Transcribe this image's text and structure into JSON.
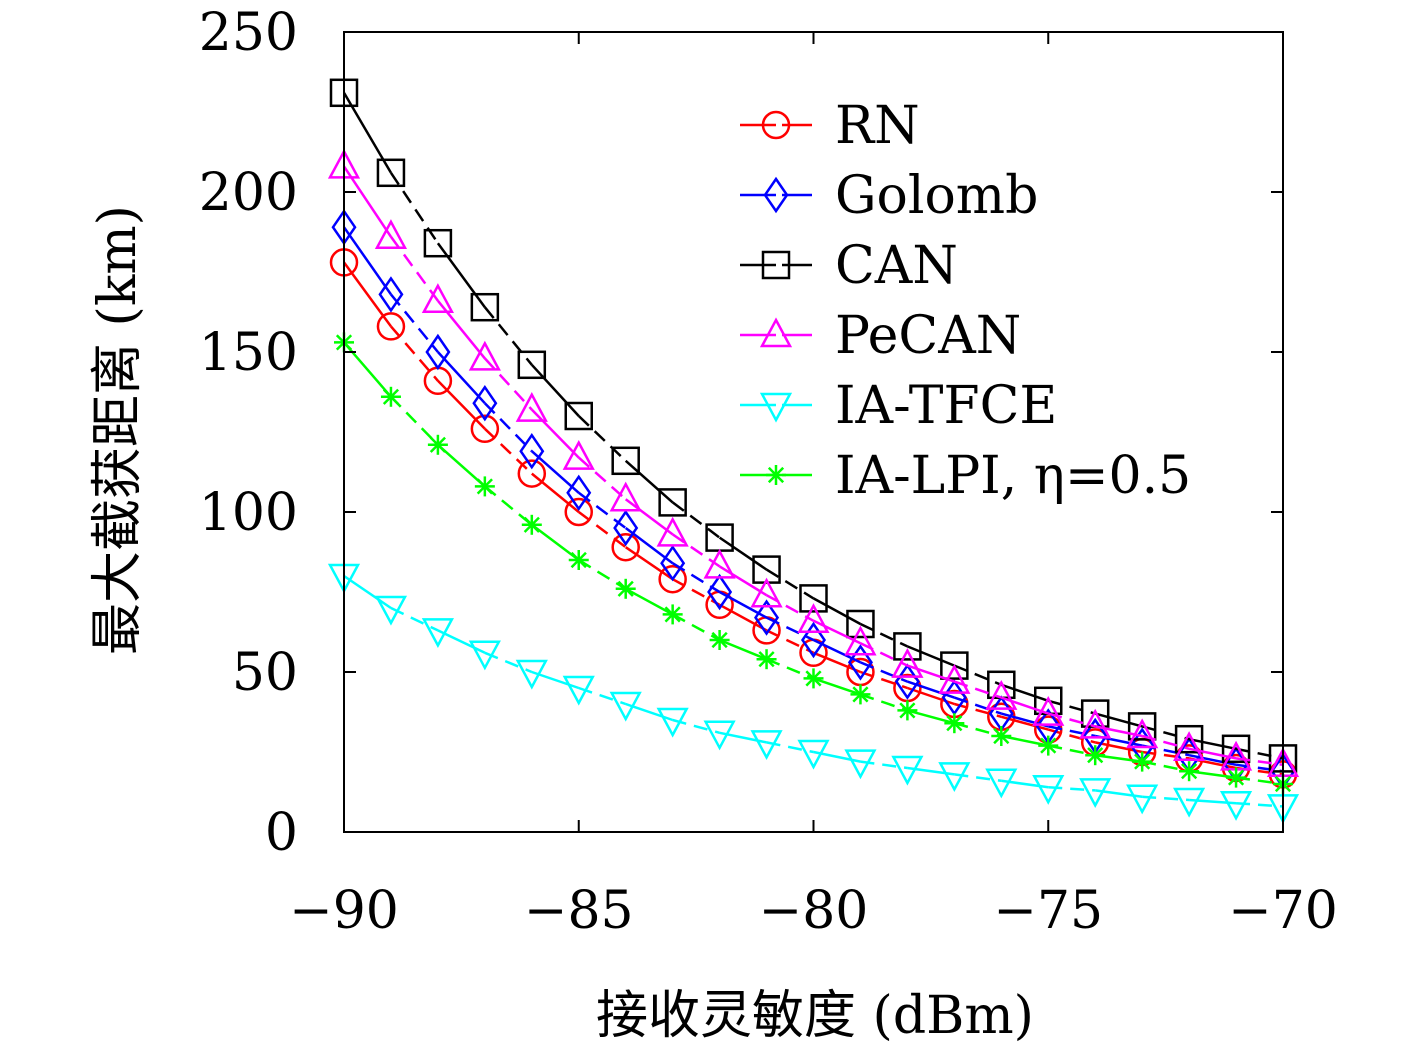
{
  "chart_data": {
    "type": "line",
    "title": "",
    "xlabel": "接收灵敏度 (dBm)",
    "ylabel": "最大截获距离 (km)",
    "xlim": [
      -90,
      -70
    ],
    "ylim": [
      0,
      250
    ],
    "xticks": [
      -90,
      -85,
      -80,
      -75,
      -70
    ],
    "xtick_labels": [
      "−90",
      "−85",
      "−80",
      "−75",
      "−70"
    ],
    "yticks": [
      0,
      50,
      100,
      150,
      200,
      250
    ],
    "ytick_labels": [
      "0",
      "50",
      "100",
      "150",
      "200",
      "250"
    ],
    "grid": false,
    "legend_position": "top-right",
    "x": [
      -90,
      -89,
      -88,
      -87,
      -86,
      -85,
      -84,
      -83,
      -82,
      -81,
      -80,
      -79,
      -78,
      -77,
      -76,
      -75,
      -74,
      -73,
      -72,
      -71,
      -70
    ],
    "series": [
      {
        "name": "RN",
        "color": "#ff0000",
        "marker": "circle",
        "values": [
          178,
          158,
          141,
          126,
          112,
          100,
          89,
          79,
          71,
          63,
          56,
          50,
          45,
          40,
          36,
          32,
          28,
          25,
          23,
          20,
          18
        ]
      },
      {
        "name": "Golomb",
        "color": "#0000ff",
        "marker": "diamond",
        "values": [
          189,
          168,
          150,
          134,
          119,
          106,
          95,
          84,
          75,
          67,
          60,
          53,
          47,
          42,
          37,
          33,
          30,
          27,
          24,
          21,
          19
        ]
      },
      {
        "name": "CAN",
        "color": "#000000",
        "marker": "square",
        "values": [
          231,
          206,
          184,
          164,
          146,
          130,
          116,
          103,
          92,
          82,
          73,
          65,
          58,
          52,
          46,
          41,
          37,
          33,
          29,
          26,
          23
        ]
      },
      {
        "name": "PeCAN",
        "color": "#ff00ff",
        "marker": "triangle-up",
        "values": [
          208,
          186,
          166,
          148,
          132,
          117,
          104,
          93,
          83,
          74,
          66,
          59,
          52,
          47,
          42,
          37,
          33,
          30,
          26,
          23,
          21
        ]
      },
      {
        "name": "IA-TFCE",
        "color": "#00ffff",
        "marker": "triangle-down",
        "values": [
          80,
          70,
          63,
          56,
          50,
          45,
          40,
          35,
          31,
          28,
          25,
          22,
          20,
          18,
          16,
          14,
          13,
          11,
          10,
          9,
          8
        ]
      },
      {
        "name": "IA-LPI, η=0.5",
        "color": "#00ff00",
        "marker": "asterisk",
        "values": [
          153,
          136,
          121,
          108,
          96,
          85,
          76,
          68,
          60,
          54,
          48,
          43,
          38,
          34,
          30,
          27,
          24,
          22,
          19,
          17,
          15
        ]
      }
    ]
  }
}
